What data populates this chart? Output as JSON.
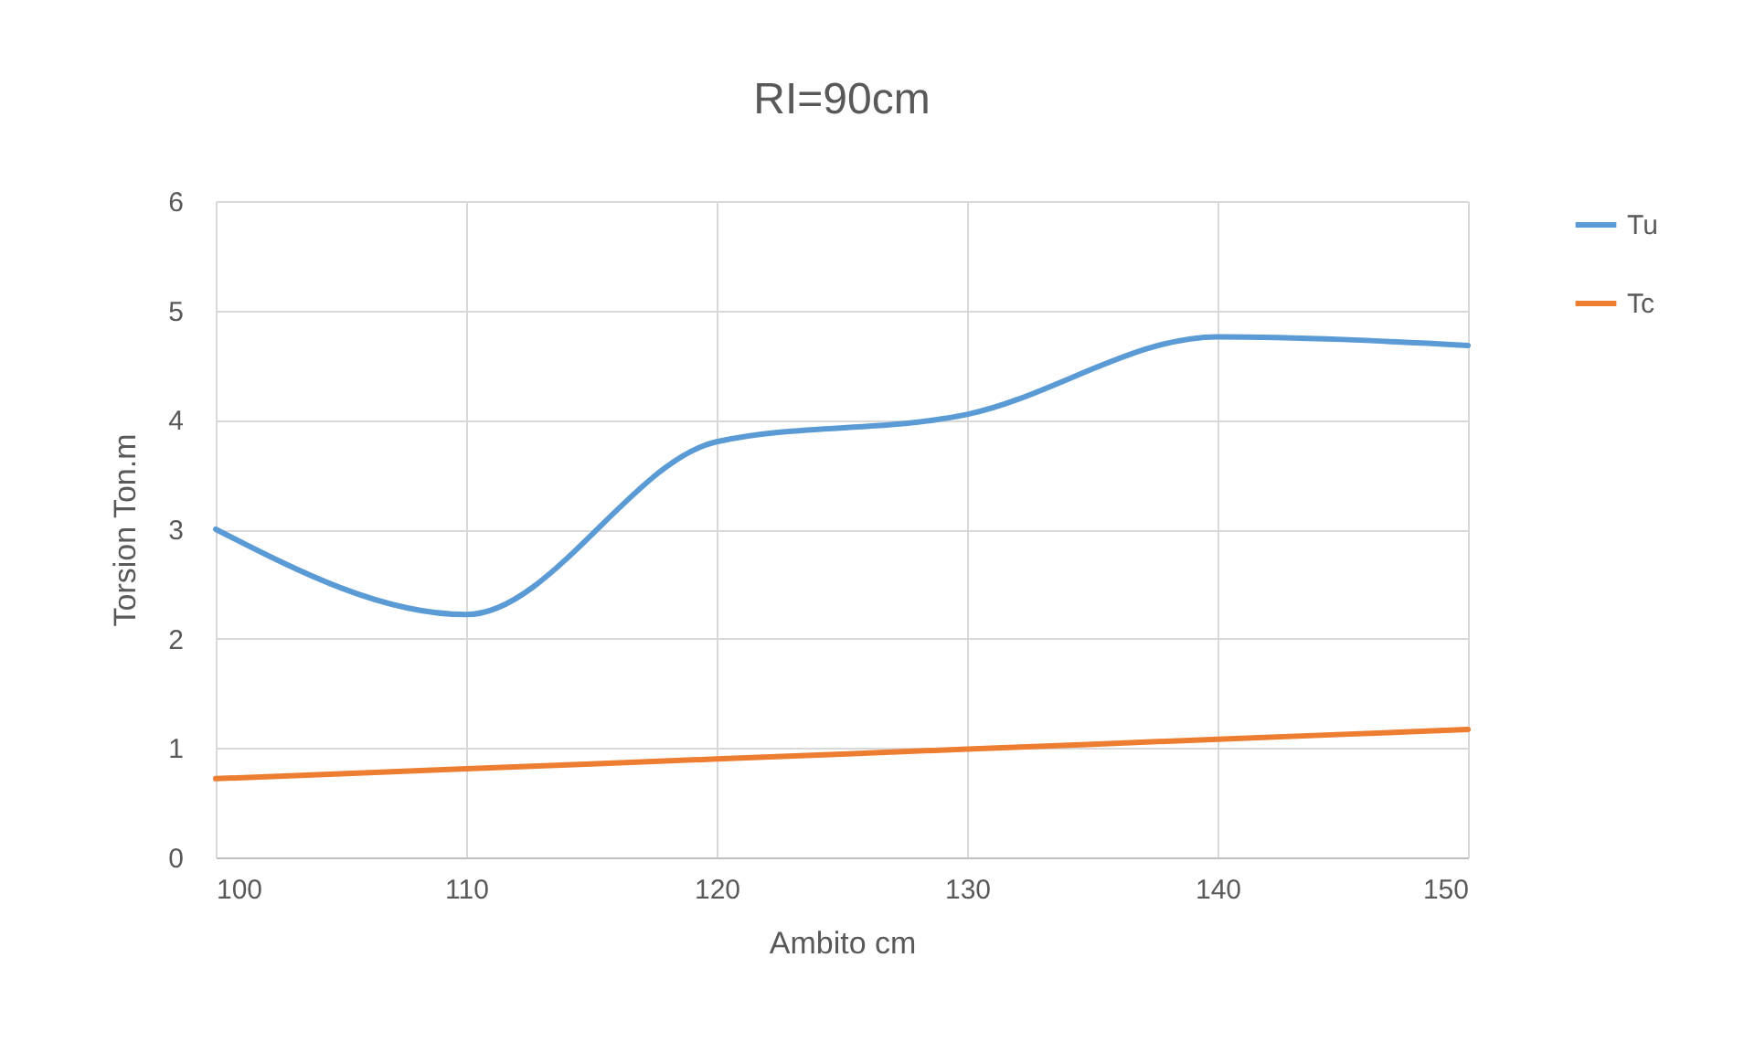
{
  "chart_data": {
    "type": "line",
    "title": "RI=90cm",
    "xlabel": "Ambito cm",
    "ylabel": "Torsion Ton.m",
    "x": [
      100,
      110,
      120,
      130,
      140,
      150
    ],
    "series": [
      {
        "name": "Tu",
        "color": "#5b9bd5",
        "values": [
          3.0,
          2.22,
          3.8,
          4.05,
          4.76,
          4.68
        ]
      },
      {
        "name": "Tc",
        "color": "#ed7d31",
        "values": [
          0.72,
          0.81,
          0.9,
          0.99,
          1.08,
          1.17
        ]
      }
    ],
    "xlim": [
      100,
      150
    ],
    "xticks": [
      100,
      110,
      120,
      130,
      140,
      150
    ],
    "ylim": [
      0,
      6
    ],
    "yticks": [
      0,
      1,
      2,
      3,
      4,
      5,
      6
    ],
    "grid": true,
    "legend": "right",
    "marker": "none",
    "line_style": "solid"
  }
}
